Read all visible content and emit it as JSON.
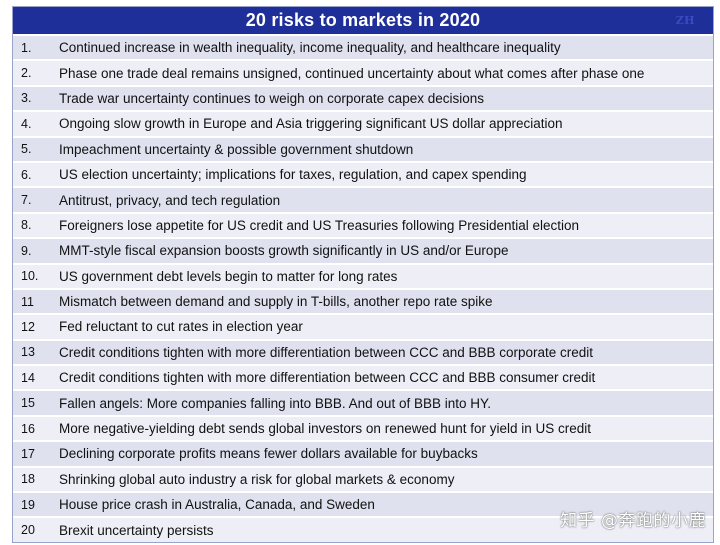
{
  "title": "20 risks to markets in 2020",
  "watermark_mark": "ZH",
  "credit": "知乎 @奔跑的小鹿",
  "risks": [
    {
      "num": "1.",
      "text": "Continued increase in wealth inequality, income inequality, and healthcare inequality"
    },
    {
      "num": "2.",
      "text": "Phase one trade deal remains unsigned, continued uncertainty about what comes after phase one"
    },
    {
      "num": "3.",
      "text": "Trade war uncertainty continues to weigh on corporate capex decisions"
    },
    {
      "num": "4.",
      "text": "Ongoing slow growth in Europe and Asia triggering significant US dollar appreciation"
    },
    {
      "num": "5.",
      "text": "Impeachment uncertainty & possible government shutdown"
    },
    {
      "num": "6.",
      "text": "US election uncertainty; implications for taxes, regulation, and capex spending"
    },
    {
      "num": "7.",
      "text": "Antitrust, privacy, and tech regulation"
    },
    {
      "num": "8.",
      "text": "Foreigners lose appetite for US credit and US Treasuries following Presidential election"
    },
    {
      "num": "9.",
      "text": "MMT-style fiscal expansion boosts growth significantly in US and/or Europe"
    },
    {
      "num": "10.",
      "text": "US government debt levels begin to matter for long rates"
    },
    {
      "num": "11",
      "text": "Mismatch between demand and supply in T-bills, another repo rate spike"
    },
    {
      "num": "12",
      "text": "Fed reluctant to cut rates in election year"
    },
    {
      "num": "13",
      "text": "Credit conditions tighten with more differentiation between CCC and BBB corporate credit"
    },
    {
      "num": "14",
      "text": "Credit conditions tighten with more differentiation between CCC and BBB consumer credit"
    },
    {
      "num": "15",
      "text": "Fallen angels: More companies falling into BBB. And out of BBB into HY."
    },
    {
      "num": "16",
      "text": "More negative-yielding debt sends global investors on renewed hunt for yield in US credit"
    },
    {
      "num": "17",
      "text": "Declining corporate profits means fewer dollars available for buybacks"
    },
    {
      "num": "18",
      "text": "Shrinking global auto industry a risk for global markets & economy"
    },
    {
      "num": "19",
      "text": "House price crash in Australia, Canada, and Sweden"
    },
    {
      "num": "20",
      "text": "Brexit uncertainty persists"
    }
  ]
}
